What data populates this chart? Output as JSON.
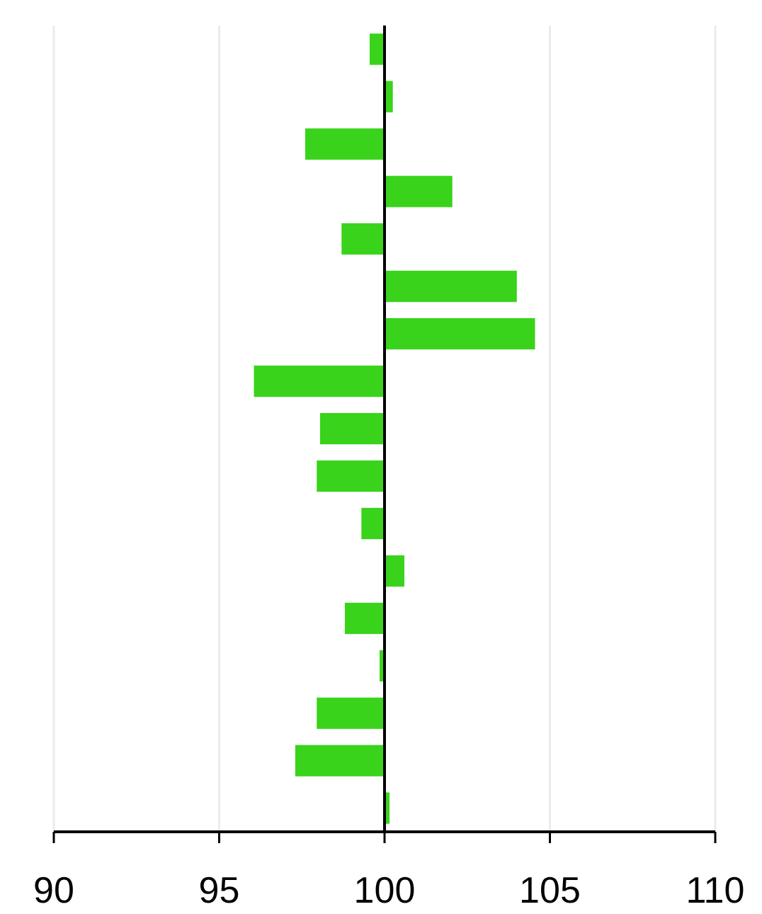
{
  "chart_data": {
    "type": "bar",
    "orientation": "horizontal",
    "categories": [
      null,
      null,
      null,
      null,
      null,
      null,
      null,
      null,
      null,
      null,
      null,
      null,
      null,
      null,
      null,
      null,
      null
    ],
    "values": [
      -0.45,
      0.25,
      -2.4,
      2.05,
      -1.3,
      4.0,
      4.55,
      -3.95,
      -1.95,
      -2.05,
      -0.7,
      0.6,
      -1.2,
      -0.15,
      -2.05,
      -2.7,
      0.15
    ],
    "base": [
      100,
      100,
      100,
      100,
      100,
      100,
      100,
      100,
      100,
      100,
      100,
      100,
      100,
      100,
      100,
      100,
      100
    ],
    "color": "#39d31b",
    "xlim": [
      90,
      110
    ],
    "xticks": [
      90,
      95,
      100,
      105,
      110
    ],
    "grid": "x",
    "ref_lines": [
      {
        "axis": "x",
        "value": 100,
        "color": "#000000"
      }
    ]
  }
}
